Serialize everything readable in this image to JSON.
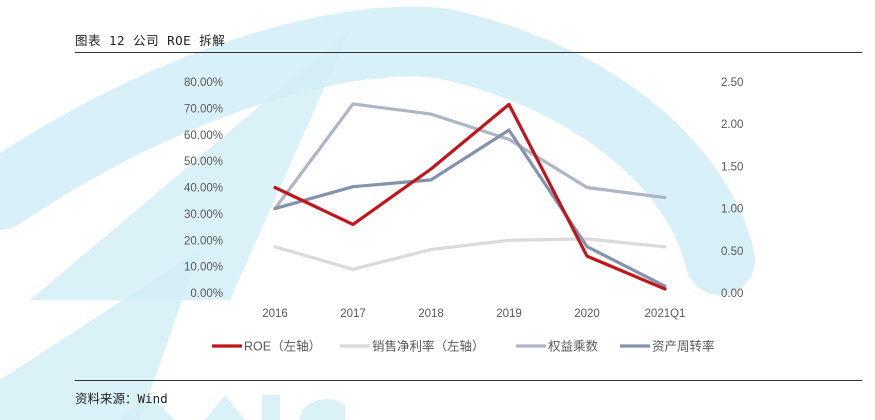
{
  "figure_title": "图表 12 公司 ROE 拆解",
  "source_label": "资料来源：",
  "source_value": "Wind",
  "colors": {
    "roe": "#c0151b",
    "net_margin": "#dadada",
    "equity_multiplier": "#adb6c7",
    "asset_turnover": "#8493ad",
    "watermark": "#d4eef7"
  },
  "chart_data": {
    "type": "line",
    "categories": [
      "2016",
      "2017",
      "2018",
      "2019",
      "2020",
      "2021Q1"
    ],
    "y_left": {
      "ticks": [
        "0.00%",
        "10.00%",
        "20.00%",
        "30.00%",
        "40.00%",
        "50.00%",
        "60.00%",
        "70.00%",
        "80.00%"
      ],
      "min": 0,
      "max": 80
    },
    "y_right": {
      "ticks": [
        "0.00",
        "0.50",
        "1.00",
        "1.50",
        "2.00",
        "2.50"
      ],
      "min": 0,
      "max": 2.5
    },
    "series": [
      {
        "name": "ROE（左轴）",
        "axis": "left",
        "color": "#c0151b",
        "values": [
          40.0,
          26.0,
          47.0,
          71.5,
          14.0,
          1.5
        ]
      },
      {
        "name": "销售净利率（左轴）",
        "axis": "left",
        "color": "#dadada",
        "values": [
          17.5,
          9.0,
          16.5,
          20.0,
          20.5,
          17.5
        ]
      },
      {
        "name": "权益乘数",
        "axis": "right",
        "color": "#adb6c7",
        "values": [
          1.0,
          2.24,
          2.12,
          1.82,
          1.25,
          1.13
        ]
      },
      {
        "name": "资产周转率",
        "axis": "right",
        "color": "#8493ad",
        "values": [
          1.0,
          1.26,
          1.34,
          1.93,
          0.55,
          0.08
        ]
      }
    ],
    "legend_position": "bottom",
    "grid": false
  }
}
